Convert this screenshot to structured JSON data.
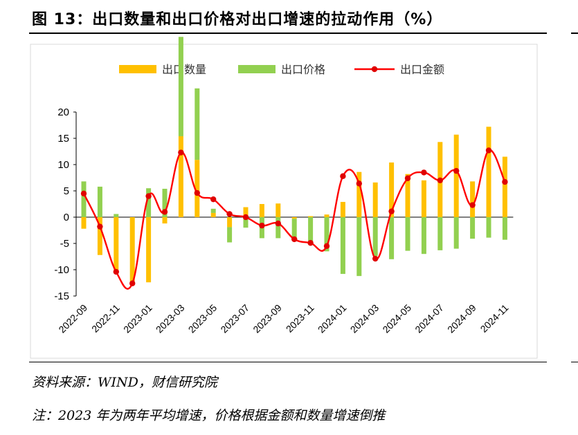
{
  "title": "图 13：出口数量和出口价格对出口增速的拉动作用（%）",
  "source_note": "资料来源：WIND，财信研究院",
  "footnote": "注：2023 年为两年平均增速，价格根据金额和数量增速倒推",
  "colors": {
    "quantity": "#FFC000",
    "price": "#92D050",
    "amount": "#FF0000",
    "marker": "#E00000",
    "grid": "#d9d9d9"
  },
  "chart_data": {
    "type": "bar+line",
    "categories": [
      "2022-09",
      "2022-10",
      "2022-11",
      "2022-12",
      "2023-01",
      "2023-02",
      "2023-03",
      "2023-04",
      "2023-05",
      "2023-06",
      "2023-07",
      "2023-08",
      "2023-09",
      "2023-10",
      "2023-11",
      "2023-12",
      "2024-01",
      "2024-02",
      "2024-03",
      "2024-04",
      "2024-05",
      "2024-06",
      "2024-07",
      "2024-08",
      "2024-09",
      "2024-10",
      "2024-11"
    ],
    "tick_labels": [
      "2022-09",
      "2022-11",
      "2023-01",
      "2023-03",
      "2023-05",
      "2023-07",
      "2023-09",
      "2023-11",
      "2024-01",
      "2024-03",
      "2024-05",
      "2024-07",
      "2024-09",
      "2024-11"
    ],
    "series": [
      {
        "name": "出口数量",
        "type": "bar",
        "values": [
          -2.2,
          -7.2,
          -10.2,
          -12.2,
          -12.4,
          -1.2,
          15.4,
          10.9,
          0.8,
          -1.9,
          1.9,
          2.5,
          2.6,
          -0.3,
          0.2,
          0.5,
          2.9,
          8.6,
          6.6,
          10.4,
          8.2,
          7.0,
          14.3,
          15.7,
          6.8,
          17.2,
          11.5
        ]
      },
      {
        "name": "出口价格",
        "type": "bar",
        "values": [
          6.8,
          5.8,
          0.6,
          -0.5,
          5.5,
          5.4,
          18.9,
          13.6,
          0.8,
          -2.9,
          -2.0,
          -4.0,
          -4.0,
          -3.9,
          -5.0,
          -6.5,
          -10.8,
          -11.2,
          -7.4,
          -8.0,
          -6.4,
          -7.0,
          -6.3,
          -6.0,
          -4.1,
          -3.9,
          -4.3
        ]
      },
      {
        "name": "出口金额",
        "type": "line",
        "values": [
          4.5,
          -1.8,
          -10.4,
          -12.6,
          4.0,
          1.0,
          12.3,
          4.6,
          3.4,
          0.6,
          0.0,
          -1.6,
          -1.2,
          -4.2,
          -4.9,
          -5.5,
          7.8,
          6.4,
          -7.9,
          1.1,
          7.4,
          8.5,
          7.0,
          8.8,
          2.3,
          12.7,
          6.7
        ]
      }
    ],
    "ylim": [
      -15,
      20
    ],
    "yticks": [
      -15,
      -10,
      -5,
      0,
      5,
      10,
      15,
      20
    ],
    "legend_position": "top-center"
  }
}
